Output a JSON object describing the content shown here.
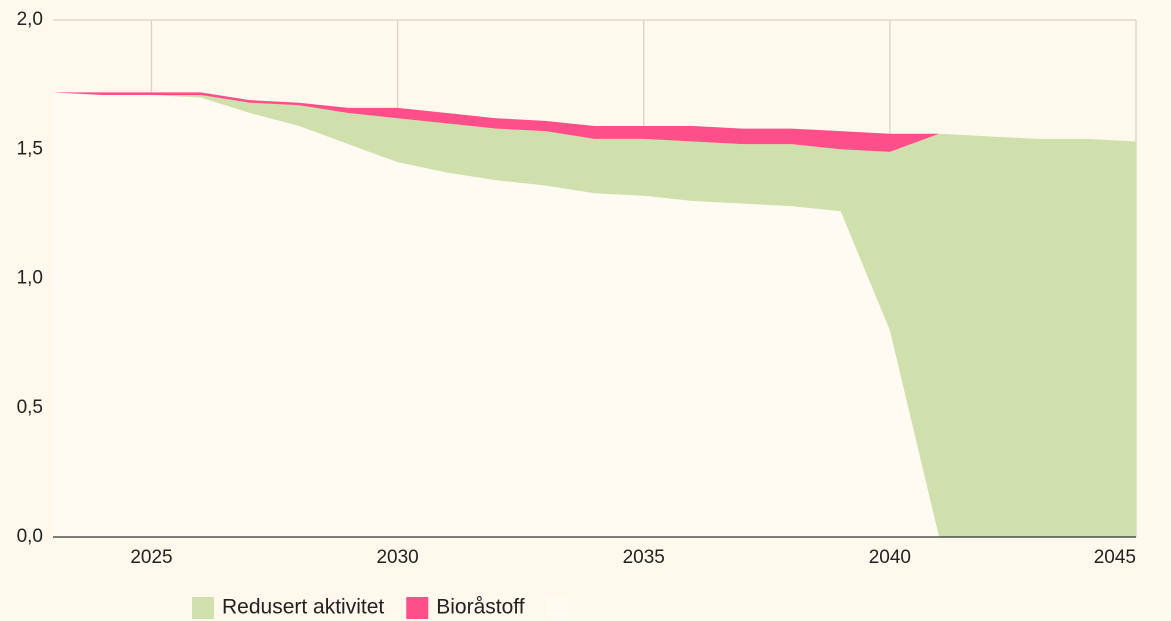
{
  "chart_data": {
    "type": "stacked_area",
    "x": [
      2023,
      2024,
      2025,
      2026,
      2027,
      2028,
      2029,
      2030,
      2031,
      2032,
      2033,
      2034,
      2035,
      2036,
      2037,
      2038,
      2039,
      2040,
      2041,
      2042,
      2043,
      2044,
      2045
    ],
    "series": [
      {
        "color": "#fffbf3",
        "values": [
          1.72,
          1.71,
          1.71,
          1.7,
          1.64,
          1.59,
          1.52,
          1.45,
          1.41,
          1.38,
          1.36,
          1.33,
          1.32,
          1.3,
          1.29,
          1.28,
          1.26,
          0.8,
          0,
          0,
          0,
          0,
          0
        ]
      },
      {
        "name": "Redusert aktivitet",
        "color": "#cfe0ad",
        "values": [
          0,
          0,
          0,
          0.01,
          0.04,
          0.08,
          0.12,
          0.17,
          0.19,
          0.2,
          0.21,
          0.21,
          0.22,
          0.23,
          0.23,
          0.24,
          0.24,
          0.69,
          1.56,
          1.55,
          1.54,
          1.54,
          1.53
        ]
      },
      {
        "name": "Bioråstoff",
        "color": "#ff4f8b",
        "values": [
          0,
          0.01,
          0.01,
          0.01,
          0.01,
          0.01,
          0.02,
          0.04,
          0.04,
          0.04,
          0.04,
          0.05,
          0.05,
          0.06,
          0.06,
          0.06,
          0.07,
          0.07,
          0,
          0,
          0,
          0,
          0
        ]
      }
    ],
    "xlim": [
      2023,
      2045
    ],
    "xticks": [
      2025,
      2030,
      2035,
      2040,
      2045
    ],
    "ylim": [
      0,
      2
    ],
    "yticks": [
      {
        "value": 0,
        "label": "0,0"
      },
      {
        "value": 0.5,
        "label": "0,5"
      },
      {
        "value": 1,
        "label": "1,0"
      },
      {
        "value": 1.5,
        "label": "1,5"
      },
      {
        "value": 2,
        "label": "2,0"
      }
    ],
    "grid": true,
    "legend": "bottom"
  }
}
